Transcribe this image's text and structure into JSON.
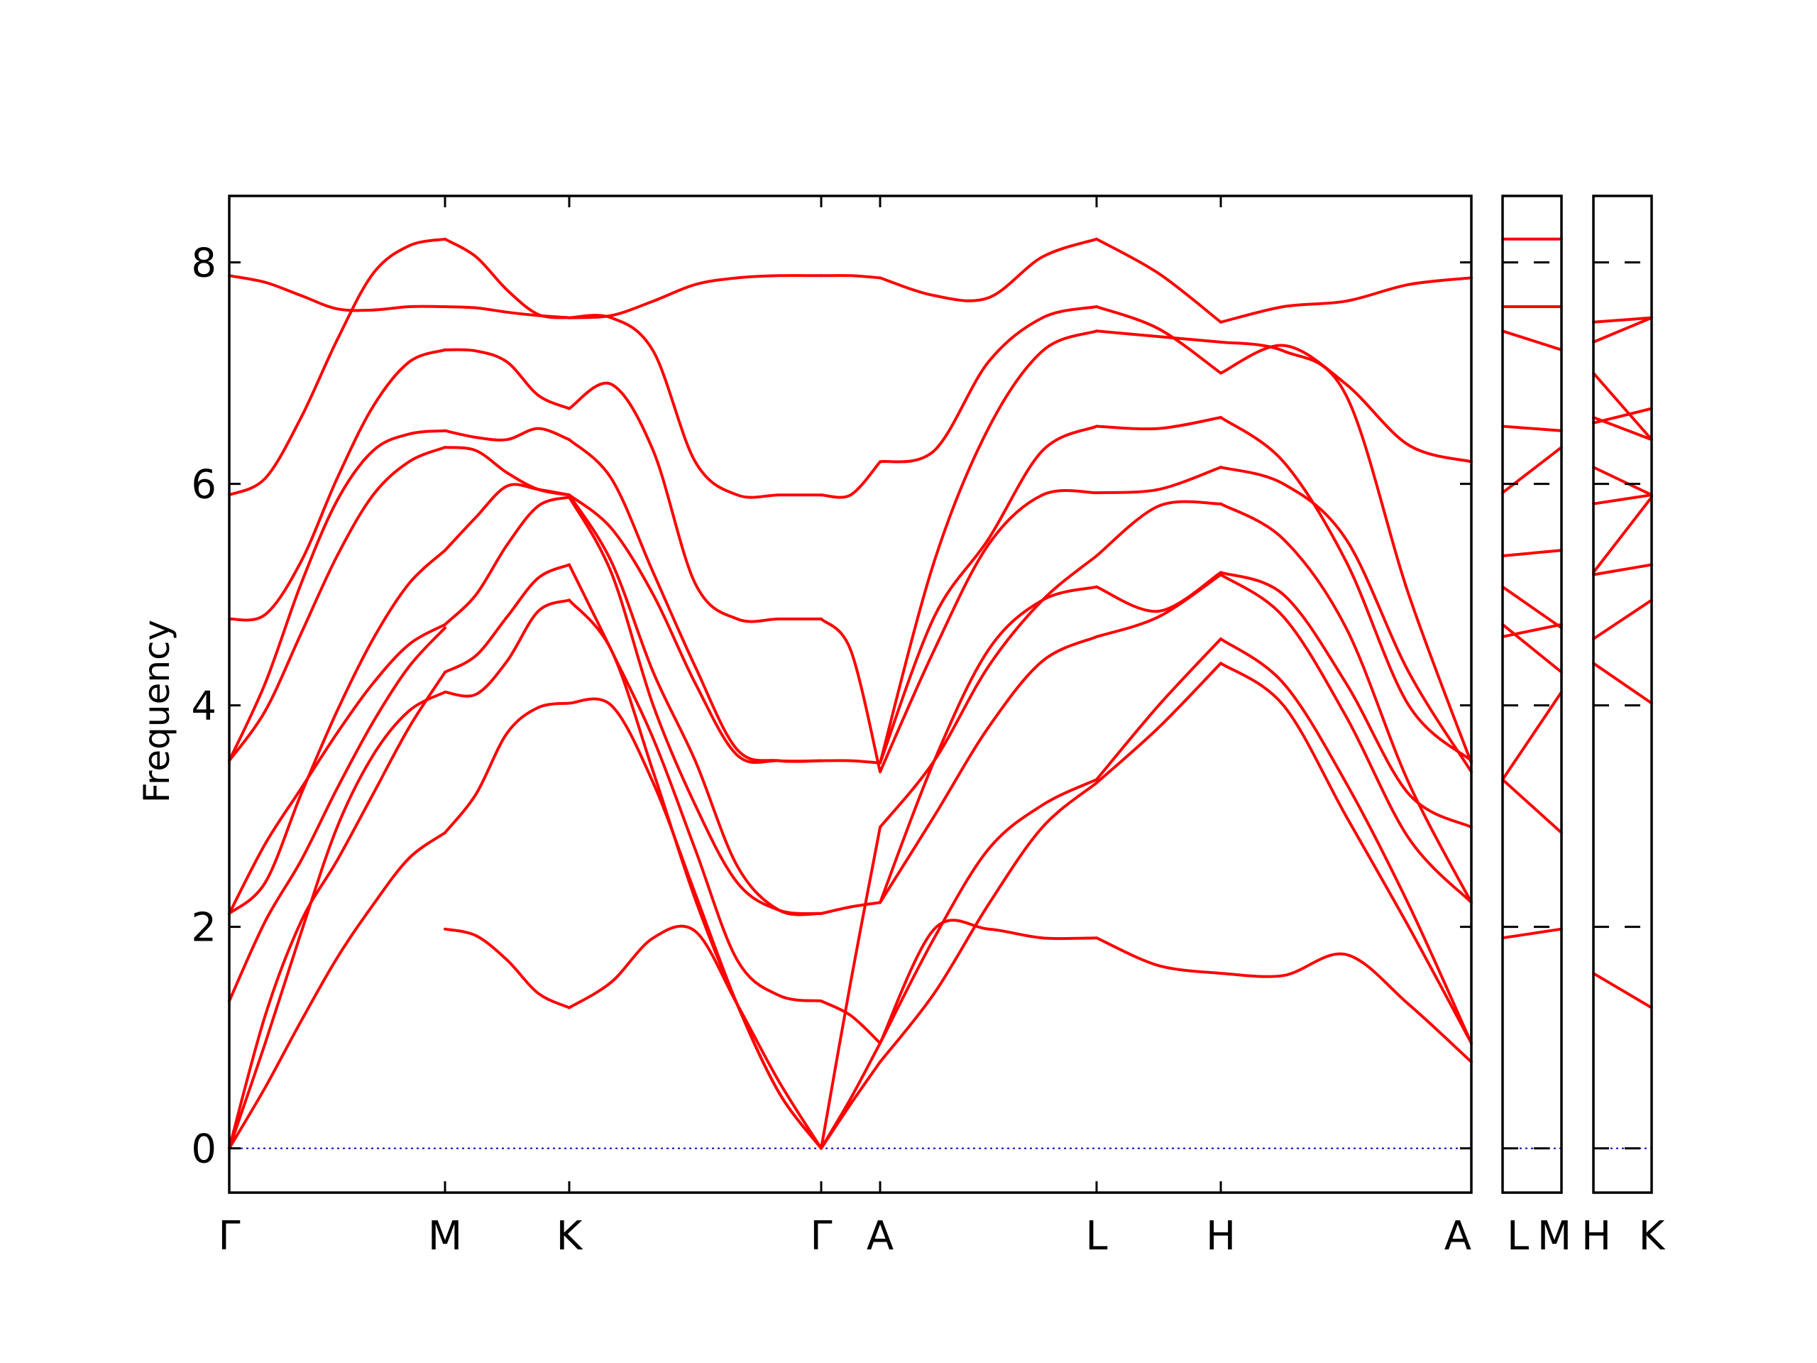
{
  "chart_data": {
    "type": "line",
    "ylabel": "Frequency",
    "ylim": [
      -0.4,
      8.6
    ],
    "yticks": [
      0,
      2,
      4,
      6,
      8
    ],
    "grid": false,
    "legend": "none",
    "colors": {
      "bands": "#ff0000",
      "zero_line": "#0000cc",
      "axes": "#000000"
    },
    "panels": [
      {
        "labels": [
          "Γ",
          "M",
          "K",
          "Γ",
          "A",
          "L",
          "H",
          "A"
        ],
        "segments": [
          {
            "from": "Γ",
            "to": "M",
            "bands": [
              [
                0,
                0.55,
                1.15,
                1.72,
                2.2,
                2.62,
                2.85
              ],
              [
                0,
                0.95,
                1.95,
                2.9,
                3.55,
                3.95,
                4.12
              ],
              [
                0,
                1.2,
                2.05,
                2.6,
                3.2,
                3.8,
                4.3
              ],
              [
                1.33,
                2.05,
                2.6,
                3.25,
                3.85,
                4.35,
                4.7
              ],
              [
                2.12,
                2.75,
                3.25,
                3.75,
                4.2,
                4.55,
                4.73
              ],
              [
                2.12,
                2.4,
                3.2,
                3.95,
                4.6,
                5.1,
                5.4
              ],
              [
                3.5,
                3.95,
                4.65,
                5.35,
                5.9,
                6.2,
                6.33
              ],
              [
                3.5,
                4.2,
                5.1,
                5.85,
                6.3,
                6.45,
                6.48
              ],
              [
                4.78,
                4.82,
                5.3,
                6.05,
                6.7,
                7.1,
                7.21
              ],
              [
                5.9,
                6.05,
                6.6,
                7.3,
                7.9,
                8.15,
                8.21
              ],
              [
                7.88,
                7.82,
                7.7,
                7.58,
                7.57,
                7.6,
                7.6
              ]
            ]
          },
          {
            "from": "M",
            "to": "K",
            "bands": [
              [
                1.98,
                1.92,
                1.7,
                1.4,
                1.27
              ],
              [
                2.85,
                3.2,
                3.75,
                3.98,
                4.02
              ],
              [
                4.12,
                4.1,
                4.4,
                4.85,
                4.95
              ],
              [
                4.3,
                4.45,
                4.8,
                5.15,
                5.27
              ],
              [
                4.73,
                5.0,
                5.45,
                5.8,
                5.88
              ],
              [
                5.4,
                5.7,
                5.98,
                5.95,
                5.9
              ],
              [
                6.33,
                6.3,
                6.1,
                5.95,
                5.9
              ],
              [
                6.48,
                6.42,
                6.4,
                6.5,
                6.4
              ],
              [
                7.21,
                7.2,
                7.1,
                6.8,
                6.68
              ],
              [
                7.6,
                7.59,
                7.55,
                7.52,
                7.5
              ],
              [
                8.21,
                8.05,
                7.75,
                7.53,
                7.5
              ]
            ]
          },
          {
            "from": "K",
            "to": "Γ",
            "bands": [
              [
                1.27,
                1.5,
                1.9,
                1.96,
                1.3,
                0.6,
                0
              ],
              [
                4.02,
                4.0,
                3.3,
                2.3,
                1.3,
                0.5,
                0
              ],
              [
                4.95,
                4.5,
                3.4,
                2.25,
                1.3,
                0.5,
                0
              ],
              [
                5.27,
                4.5,
                3.7,
                2.7,
                1.7,
                1.38,
                1.33
              ],
              [
                5.88,
                5.2,
                4.0,
                3.1,
                2.4,
                2.15,
                2.12
              ],
              [
                5.9,
                5.3,
                4.3,
                3.5,
                2.55,
                2.15,
                2.12
              ],
              [
                5.9,
                5.6,
                5.0,
                4.2,
                3.55,
                3.5,
                3.5
              ],
              [
                6.4,
                6.05,
                5.2,
                4.35,
                3.6,
                3.5,
                3.5
              ],
              [
                6.68,
                6.9,
                6.3,
                5.1,
                4.78,
                4.78,
                4.78
              ],
              [
                7.5,
                7.5,
                7.2,
                6.2,
                5.9,
                5.9,
                5.9
              ],
              [
                7.5,
                7.52,
                7.65,
                7.8,
                7.86,
                7.88,
                7.88
              ]
            ]
          },
          {
            "from": "Γ",
            "to": "A",
            "bands": [
              [
                0,
                0.4,
                0.78
              ],
              [
                0,
                0.45,
                0.95
              ],
              [
                1.33,
                1.2,
                0.95
              ],
              [
                0,
                1.5,
                2.9
              ],
              [
                2.12,
                2.18,
                2.22
              ],
              [
                3.5,
                3.5,
                3.48
              ],
              [
                4.78,
                4.5,
                3.4
              ],
              [
                5.9,
                5.9,
                6.2
              ],
              [
                7.88,
                7.88,
                7.86
              ]
            ]
          },
          {
            "from": "A",
            "to": "L",
            "bands": [
              [
                0.78,
                1.4,
                2.2,
                2.9,
                3.3
              ],
              [
                0.95,
                1.9,
                2.7,
                3.1,
                3.33
              ],
              [
                0.95,
                1.98,
                1.98,
                1.9,
                1.9
              ],
              [
                2.22,
                3.0,
                3.8,
                4.4,
                4.62
              ],
              [
                2.22,
                3.5,
                4.5,
                4.95,
                5.07
              ],
              [
                2.9,
                3.5,
                4.35,
                4.95,
                5.35
              ],
              [
                3.4,
                4.5,
                5.45,
                5.9,
                5.92
              ],
              [
                3.48,
                4.8,
                5.5,
                6.3,
                6.52
              ],
              [
                3.48,
                5.3,
                6.5,
                7.2,
                7.38
              ],
              [
                6.2,
                6.3,
                7.1,
                7.5,
                7.6
              ],
              [
                7.86,
                7.7,
                7.68,
                8.05,
                8.21
              ]
            ]
          },
          {
            "from": "L",
            "to": "H",
            "bands": [
              [
                1.9,
                1.65,
                1.58
              ],
              [
                3.3,
                3.8,
                4.38
              ],
              [
                3.33,
                4.0,
                4.6
              ],
              [
                4.62,
                4.8,
                5.18
              ],
              [
                5.07,
                4.85,
                5.2
              ],
              [
                5.35,
                5.8,
                5.82
              ],
              [
                5.92,
                5.95,
                6.15
              ],
              [
                6.52,
                6.5,
                6.6
              ],
              [
                7.38,
                7.33,
                7.28
              ],
              [
                7.6,
                7.4,
                7.0
              ],
              [
                8.21,
                7.9,
                7.46
              ]
            ]
          },
          {
            "from": "H",
            "to": "A",
            "bands": [
              [
                1.58,
                1.56,
                1.75,
                1.3,
                0.78
              ],
              [
                4.38,
                4.0,
                3.0,
                2.0,
                0.95
              ],
              [
                4.6,
                4.2,
                3.3,
                2.2,
                0.95
              ],
              [
                5.18,
                4.8,
                3.9,
                2.8,
                2.22
              ],
              [
                5.2,
                5.0,
                4.2,
                3.2,
                2.9
              ],
              [
                5.82,
                5.5,
                4.7,
                3.3,
                2.22
              ],
              [
                6.15,
                6.0,
                5.5,
                4.3,
                3.4
              ],
              [
                6.6,
                6.2,
                5.3,
                4.0,
                3.5
              ],
              [
                7.28,
                7.2,
                6.8,
                5.0,
                3.48
              ],
              [
                7.0,
                7.25,
                6.9,
                6.35,
                6.2
              ],
              [
                7.46,
                7.6,
                7.65,
                7.8,
                7.86
              ]
            ]
          }
        ]
      },
      {
        "labels": [
          "L",
          "M"
        ],
        "segments": [
          {
            "from": "L",
            "to": "M",
            "bands": [
              [
                1.9,
                1.98
              ],
              [
                3.33,
                2.85
              ],
              [
                3.33,
                4.12
              ],
              [
                4.62,
                4.73
              ],
              [
                4.73,
                4.3
              ],
              [
                5.07,
                4.7
              ],
              [
                5.35,
                5.4
              ],
              [
                5.92,
                6.33
              ],
              [
                6.52,
                6.48
              ],
              [
                7.38,
                7.21
              ],
              [
                7.6,
                7.6
              ],
              [
                8.21,
                8.21
              ]
            ]
          }
        ]
      },
      {
        "labels": [
          "H",
          "K"
        ],
        "segments": [
          {
            "from": "H",
            "to": "K",
            "bands": [
              [
                1.58,
                1.27
              ],
              [
                4.38,
                4.02
              ],
              [
                4.6,
                4.95
              ],
              [
                5.18,
                5.27
              ],
              [
                5.2,
                5.88
              ],
              [
                5.82,
                5.9
              ],
              [
                6.15,
                5.9
              ],
              [
                6.6,
                6.4
              ],
              [
                7.0,
                6.4
              ],
              [
                7.28,
                7.5
              ],
              [
                7.46,
                7.5
              ],
              [
                6.55,
                6.68
              ]
            ]
          }
        ]
      }
    ]
  }
}
